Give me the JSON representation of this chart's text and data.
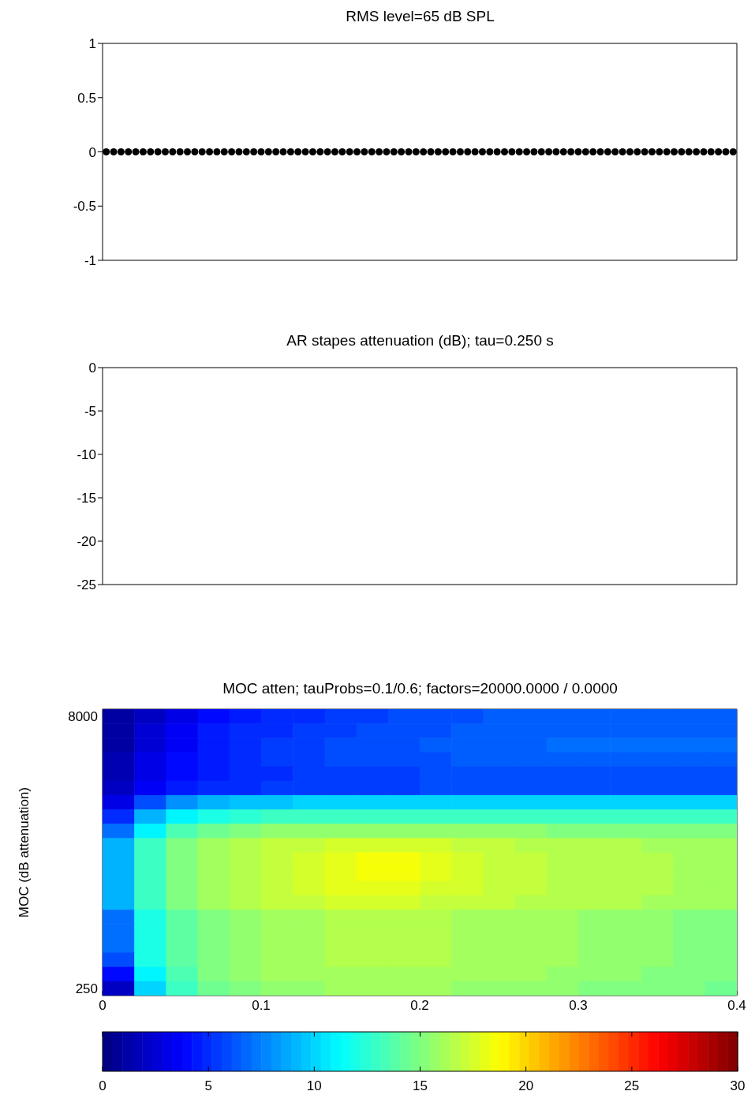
{
  "chart_data": [
    {
      "type": "scatter",
      "title": "RMS level=65 dB SPL",
      "categories": [
        null,
        null,
        null,
        null,
        null,
        null,
        null,
        null,
        null,
        null,
        null,
        null,
        null,
        null,
        null,
        null,
        null,
        null,
        null,
        null,
        null,
        null,
        null,
        null,
        null,
        null,
        null,
        null,
        null,
        null,
        null,
        null,
        null,
        null,
        null,
        null,
        null,
        null,
        null,
        null,
        null,
        null,
        null,
        null,
        null,
        null,
        null,
        null,
        null,
        null,
        null,
        null,
        null,
        null,
        null,
        null,
        null,
        null,
        null,
        null,
        null,
        null,
        null,
        null,
        null,
        null,
        null,
        null,
        null,
        null,
        null,
        null,
        null,
        null,
        null,
        null,
        null,
        null,
        null,
        null,
        null,
        null,
        null,
        null,
        null,
        null
      ],
      "values": [
        0,
        0,
        0,
        0,
        0,
        0,
        0,
        0,
        0,
        0,
        0,
        0,
        0,
        0,
        0,
        0,
        0,
        0,
        0,
        0,
        0,
        0,
        0,
        0,
        0,
        0,
        0,
        0,
        0,
        0,
        0,
        0,
        0,
        0,
        0,
        0,
        0,
        0,
        0,
        0,
        0,
        0,
        0,
        0,
        0,
        0,
        0,
        0,
        0,
        0,
        0,
        0,
        0,
        0,
        0,
        0,
        0,
        0,
        0,
        0,
        0,
        0,
        0,
        0,
        0,
        0,
        0,
        0,
        0,
        0,
        0,
        0,
        0,
        0,
        0,
        0,
        0,
        0,
        0,
        0,
        0,
        0,
        0,
        0,
        0,
        0
      ],
      "color": "#000000",
      "marker": "circle",
      "ylim": [
        -1,
        1
      ],
      "yticks": [
        -1,
        -0.5,
        0,
        0.5,
        1
      ],
      "tick_labels": "y"
    },
    {
      "type": "line",
      "title": "AR stapes attenuation (dB); tau=0.250 s",
      "categories": [
        null,
        null
      ],
      "values": [
        null,
        null
      ],
      "color": "#0000ff",
      "ylim": [
        -25,
        0
      ],
      "yticks": [
        -25,
        -20,
        -15,
        -10,
        -5,
        0
      ],
      "tick_labels": "y"
    },
    {
      "type": "heatmap",
      "title": "MOC atten; tauProbs=0.1/0.6; factors=20000.0000 / 0.0000",
      "ylabel": "MOC (dB attenuation)",
      "x": [
        0.01,
        0.03,
        0.05,
        0.07,
        0.09,
        0.11,
        0.13,
        0.15,
        0.17,
        0.19,
        0.21,
        0.23,
        0.25,
        0.27,
        0.29,
        0.31,
        0.33,
        0.35,
        0.37,
        0.39
      ],
      "xlim": [
        0,
        0.4
      ],
      "xticks": [
        0,
        0.1,
        0.2,
        0.3,
        0.4
      ],
      "y_categories": [
        "8000",
        null,
        null,
        null,
        null,
        null,
        null,
        null,
        null,
        null,
        null,
        null,
        null,
        null,
        null,
        null,
        null,
        null,
        null,
        "250"
      ],
      "clim": [
        0,
        30
      ],
      "cticks": [
        0,
        5,
        10,
        15,
        20,
        25,
        30
      ],
      "cells": [
        [
          1,
          2,
          3,
          4,
          4.5,
          5,
          5,
          5.5,
          5.5,
          6,
          6,
          6,
          6.5,
          6.5,
          6.5,
          6.5,
          6.5,
          6.5,
          6.5,
          6.5
        ],
        [
          1,
          2.5,
          3.5,
          4.5,
          5,
          5,
          5.5,
          5.5,
          6,
          6,
          6,
          6.5,
          6.5,
          6.5,
          6.5,
          6.5,
          6.5,
          6.5,
          6.5,
          6.5
        ],
        [
          1,
          2.5,
          3.5,
          4.5,
          5,
          5.5,
          5.5,
          6,
          6,
          6,
          6.5,
          6.5,
          6.5,
          6.5,
          7,
          7,
          7,
          7,
          7,
          7
        ],
        [
          1.5,
          3,
          4,
          4.5,
          5,
          5.5,
          5.5,
          6,
          6,
          6,
          6,
          6.5,
          6.5,
          6.5,
          6.5,
          6.5,
          6.5,
          6.5,
          6.5,
          6.5
        ],
        [
          1.5,
          3,
          4,
          4.5,
          5,
          5,
          5.5,
          5.5,
          5.5,
          5.5,
          6,
          6,
          6,
          6,
          6,
          6,
          6,
          6,
          6,
          6
        ],
        [
          2,
          3.5,
          4.5,
          5,
          5,
          5.5,
          5.5,
          5.5,
          5.5,
          5.5,
          6,
          6,
          6,
          6,
          6,
          6,
          6,
          6,
          6,
          6
        ],
        [
          3,
          6,
          8,
          9,
          9.5,
          9.5,
          10,
          10,
          10,
          10,
          10,
          10,
          10,
          10,
          10,
          10,
          10,
          10,
          10,
          10
        ],
        [
          5,
          9,
          11,
          12,
          12.5,
          13,
          13,
          13,
          13,
          13,
          13,
          13,
          13,
          13,
          13,
          13,
          13,
          13,
          13,
          13
        ],
        [
          7,
          11,
          13.5,
          14.5,
          15,
          15.5,
          15.5,
          15.5,
          15.5,
          15.5,
          15.5,
          15.5,
          15.5,
          15.5,
          15,
          15,
          15,
          15,
          15,
          15
        ],
        [
          9,
          13,
          15,
          16,
          16.5,
          17,
          17,
          17.5,
          17.5,
          17.5,
          17.5,
          17,
          17,
          16.5,
          16.5,
          16.5,
          16.5,
          16,
          16,
          16
        ],
        [
          9,
          13,
          15,
          16,
          16.5,
          17,
          17.5,
          18,
          18.5,
          18.5,
          18,
          17.5,
          17,
          17,
          16.5,
          16.5,
          16.5,
          16.5,
          16,
          16
        ],
        [
          9,
          13,
          15,
          16,
          16.5,
          17,
          17.5,
          18,
          18.5,
          18.5,
          18,
          17.5,
          17,
          17,
          16.5,
          16.5,
          16.5,
          16.5,
          16,
          16
        ],
        [
          9,
          13,
          15,
          16,
          16.5,
          17,
          17.5,
          18,
          18,
          18,
          17.5,
          17.5,
          17,
          17,
          16.5,
          16.5,
          16.5,
          16.5,
          16,
          16
        ],
        [
          9,
          13,
          15,
          16,
          16.5,
          17,
          17,
          17.5,
          17.5,
          17.5,
          17,
          17,
          17,
          16.5,
          16.5,
          16.5,
          16.5,
          16,
          16,
          16
        ],
        [
          7,
          12,
          14,
          15,
          15.5,
          16,
          16,
          16.5,
          16.5,
          16.5,
          16.5,
          16,
          16,
          16,
          16,
          15.5,
          15.5,
          15.5,
          15,
          15
        ],
        [
          7,
          12,
          14,
          15,
          15.5,
          16,
          16,
          16.5,
          16.5,
          16.5,
          16.5,
          16,
          16,
          16,
          16,
          15.5,
          15.5,
          15.5,
          15,
          15
        ],
        [
          7,
          12,
          14,
          15,
          15.5,
          16,
          16,
          16.5,
          16.5,
          16.5,
          16.5,
          16,
          16,
          16,
          16,
          15.5,
          15.5,
          15.5,
          15,
          15
        ],
        [
          6,
          12,
          14,
          15,
          15.5,
          16,
          16,
          16.5,
          16.5,
          16.5,
          16.5,
          16,
          16,
          16,
          16,
          15.5,
          15.5,
          15.5,
          15,
          15
        ],
        [
          4,
          11,
          13.5,
          15,
          15.5,
          16,
          16,
          16,
          16,
          16,
          16,
          16,
          16,
          16,
          15.5,
          15.5,
          15.5,
          15,
          15,
          15
        ],
        [
          2,
          10,
          13,
          14.5,
          15,
          15.5,
          15.5,
          16,
          16,
          16,
          16,
          15.5,
          15.5,
          15.5,
          15.5,
          15,
          15,
          15,
          15,
          14.5
        ]
      ]
    }
  ]
}
